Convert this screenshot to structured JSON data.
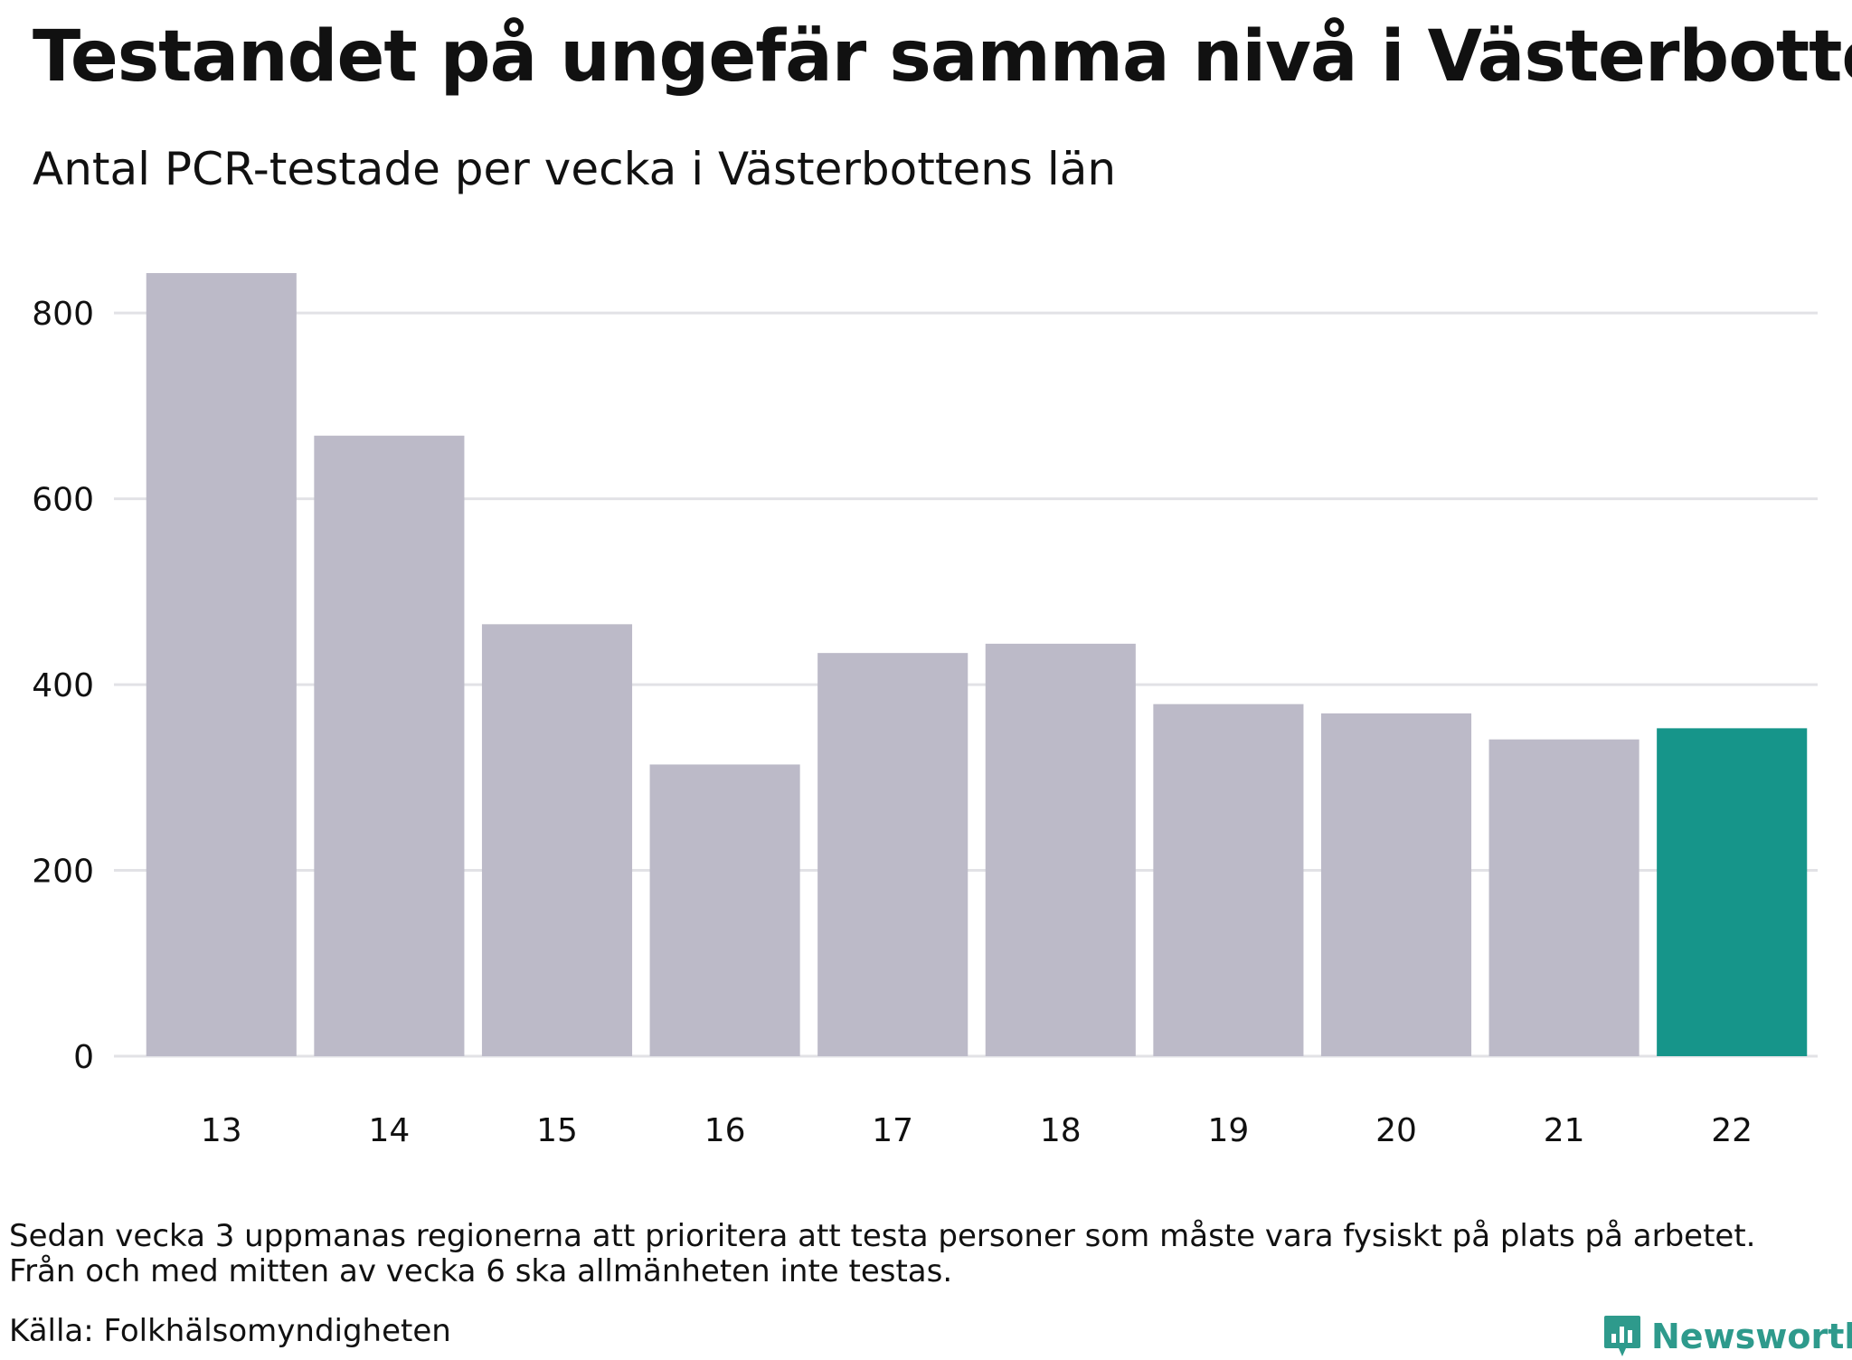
{
  "header": {
    "title": "Testandet på ungefär samma nivå i Västerbotten",
    "subtitle": "Antal PCR-testade per vecka i Västerbottens län"
  },
  "chart_data": {
    "type": "bar",
    "title": "Testandet på ungefär samma nivå i Västerbotten",
    "subtitle": "Antal PCR-testade per vecka i Västerbottens län",
    "xlabel": "",
    "ylabel": "",
    "categories": [
      "13",
      "14",
      "15",
      "16",
      "17",
      "18",
      "19",
      "20",
      "21",
      "22"
    ],
    "values": [
      843,
      668,
      465,
      314,
      434,
      444,
      379,
      369,
      341,
      353
    ],
    "highlight_index": 9,
    "ylim": [
      0,
      843
    ],
    "yticks": [
      0,
      200,
      400,
      600,
      800
    ],
    "grid": true,
    "colors": {
      "bar": "#bcbac8",
      "highlight": "#16958a",
      "grid": "#e2e2e6"
    }
  },
  "footer": {
    "note_lines": [
      "Sedan vecka 3 uppmanas regionerna att prioritera att testa personer som måste vara fysiskt på plats på arbetet.",
      "Från och med mitten av vecka 6 ska allmänheten inte testas."
    ],
    "source": "Källa: Folkhälsomyndigheten",
    "brand_name": "Newsworthy",
    "brand_icon": "newsworthy-logo-icon",
    "brand_color": "#2e9a8c"
  }
}
